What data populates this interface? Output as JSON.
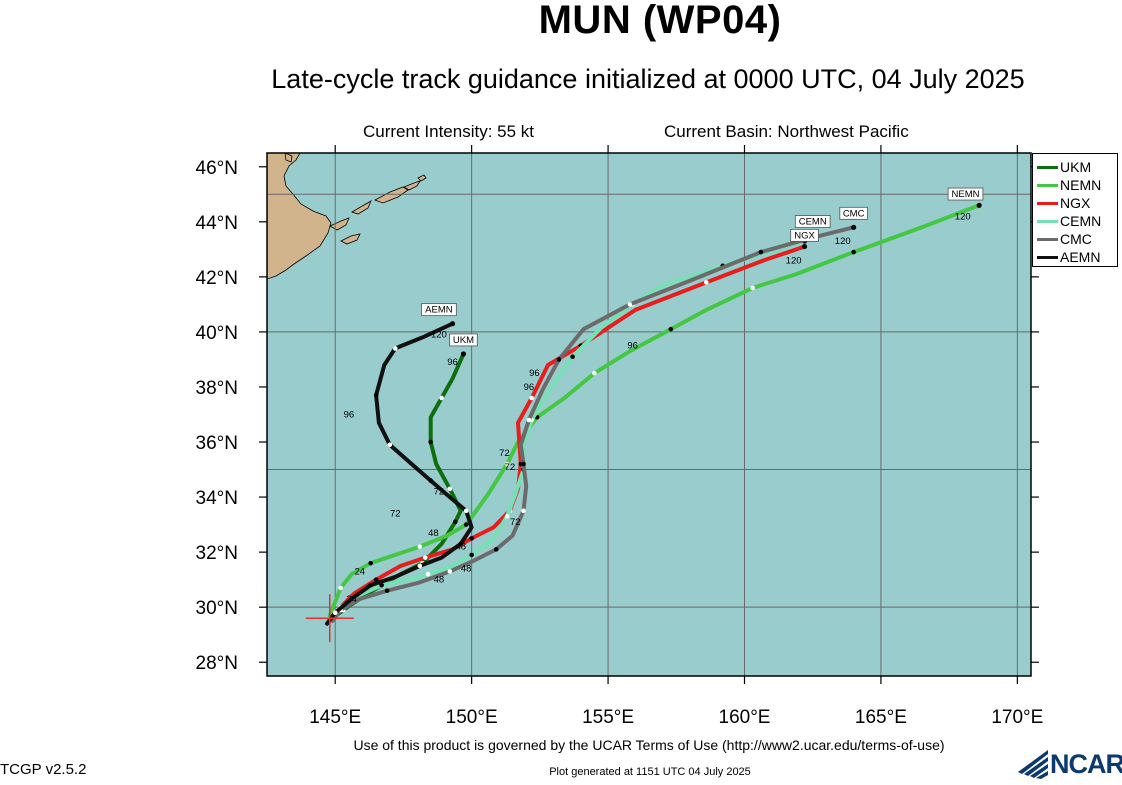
{
  "header": {
    "title": "MUN (WP04)",
    "subtitle": "Late-cycle track guidance initialized at 0000 UTC, 04 July 2025",
    "intensity": "Current Intensity: 55 kt",
    "basin": "Current Basin: Northwest Pacific"
  },
  "footer": {
    "terms": "Use of this product is governed by the UCAR Terms of Use (http://www2.ucar.edu/terms-of-use)",
    "version": "TCGP v2.5.2",
    "generated": "Plot generated at 1151 UTC   04 July 2025",
    "logo_text": "NCAR"
  },
  "map": {
    "lon_range": [
      142.5,
      170.5
    ],
    "lat_range": [
      27.5,
      46.5
    ],
    "lon_ticks": [
      145,
      150,
      155,
      160,
      165,
      170
    ],
    "lat_ticks": [
      28,
      30,
      32,
      34,
      36,
      38,
      40,
      42,
      44,
      46
    ],
    "lon_tick_labels": [
      "145°E",
      "150°E",
      "155°E",
      "160°E",
      "165°E",
      "170°E"
    ],
    "lat_tick_labels": [
      "28°N",
      "30°N",
      "32°N",
      "34°N",
      "36°N",
      "38°N",
      "40°N",
      "42°N",
      "44°N",
      "46°N"
    ],
    "gridlines": {
      "lon": [
        145,
        150,
        155,
        160,
        165,
        170
      ],
      "lat": [
        30,
        35,
        40,
        45
      ]
    },
    "ocean_color": "#99cccc",
    "land_color": "#d2b48c",
    "current_position": {
      "lon": 144.8,
      "lat": 29.6,
      "color": "#e83030"
    }
  },
  "legend": [
    {
      "model": "UKM",
      "color": "#0d6e0d"
    },
    {
      "model": "NEMN",
      "color": "#44c844"
    },
    {
      "model": "NGX",
      "color": "#e61e1e"
    },
    {
      "model": "CEMN",
      "color": "#77e0b5"
    },
    {
      "model": "CMC",
      "color": "#6b6b6b"
    },
    {
      "model": "AEMN",
      "color": "#111111"
    }
  ],
  "tracks": [
    {
      "model": "UKM",
      "color": "#0d6e0d",
      "points": [
        [
          144.9,
          29.6
        ],
        [
          145.3,
          29.9
        ],
        [
          145.9,
          30.3
        ],
        [
          146.7,
          30.8
        ],
        [
          147.4,
          31.2
        ],
        [
          148.2,
          31.6
        ],
        [
          148.9,
          32.3
        ],
        [
          149.4,
          33.1
        ],
        [
          149.6,
          33.5
        ],
        [
          149.2,
          34.3
        ],
        [
          148.7,
          35.2
        ],
        [
          148.5,
          36.0
        ],
        [
          148.5,
          36.9
        ],
        [
          148.9,
          37.6
        ],
        [
          149.3,
          38.3
        ],
        [
          149.7,
          39.2
        ]
      ],
      "labels": [
        {
          "text": "96",
          "lon": 149.3,
          "lat": 38.9
        },
        {
          "text": "UKM",
          "lon": 149.7,
          "lat": 39.6,
          "box": true
        }
      ]
    },
    {
      "model": "NEMN",
      "color": "#44c844",
      "points": [
        [
          144.8,
          29.7
        ],
        [
          145.2,
          30.7
        ],
        [
          145.6,
          31.2
        ],
        [
          146.3,
          31.6
        ],
        [
          147.2,
          31.9
        ],
        [
          148.1,
          32.2
        ],
        [
          149.1,
          32.6
        ],
        [
          149.8,
          33.0
        ],
        [
          150.6,
          34.1
        ],
        [
          151.3,
          35.2
        ],
        [
          151.7,
          36.0
        ],
        [
          152.4,
          36.9
        ],
        [
          153.4,
          37.6
        ],
        [
          154.5,
          38.5
        ],
        [
          155.8,
          39.3
        ],
        [
          157.3,
          40.1
        ],
        [
          158.6,
          40.8
        ],
        [
          160.3,
          41.6
        ],
        [
          161.9,
          42.1
        ],
        [
          164.0,
          42.9
        ],
        [
          166.5,
          43.8
        ],
        [
          168.6,
          44.6
        ]
      ],
      "labels": [
        {
          "text": "24",
          "lon": 145.9,
          "lat": 31.3
        },
        {
          "text": "48",
          "lon": 148.6,
          "lat": 32.7
        },
        {
          "text": "72",
          "lon": 151.2,
          "lat": 35.6
        },
        {
          "text": "96",
          "lon": 155.9,
          "lat": 39.5
        },
        {
          "text": "120",
          "lon": 168.0,
          "lat": 44.2
        },
        {
          "text": "NEMN",
          "lon": 168.1,
          "lat": 44.9,
          "box": true
        }
      ]
    },
    {
      "model": "NGX",
      "color": "#e61e1e",
      "points": [
        [
          144.8,
          29.5
        ],
        [
          145.1,
          29.9
        ],
        [
          145.7,
          30.5
        ],
        [
          146.5,
          31.0
        ],
        [
          147.4,
          31.5
        ],
        [
          148.3,
          31.8
        ],
        [
          149.3,
          32.1
        ],
        [
          150.0,
          32.5
        ],
        [
          150.8,
          32.9
        ],
        [
          151.4,
          33.5
        ],
        [
          151.7,
          34.3
        ],
        [
          151.8,
          35.2
        ],
        [
          151.7,
          36.7
        ],
        [
          152.2,
          37.6
        ],
        [
          152.8,
          38.8
        ],
        [
          154.0,
          39.5
        ],
        [
          156.0,
          40.8
        ],
        [
          158.6,
          41.8
        ],
        [
          160.7,
          42.6
        ],
        [
          162.2,
          43.1
        ]
      ],
      "labels": [
        {
          "text": "48",
          "lon": 149.6,
          "lat": 32.2
        },
        {
          "text": "72",
          "lon": 151.4,
          "lat": 35.1
        },
        {
          "text": "96",
          "lon": 152.3,
          "lat": 38.5
        },
        {
          "text": "120",
          "lon": 161.8,
          "lat": 42.6
        },
        {
          "text": "NGX",
          "lon": 162.2,
          "lat": 43.4,
          "box": true
        }
      ]
    },
    {
      "model": "CEMN",
      "color": "#77e0b5",
      "points": [
        [
          144.9,
          29.5
        ],
        [
          145.2,
          30.0
        ],
        [
          145.8,
          30.4
        ],
        [
          146.7,
          30.8
        ],
        [
          147.6,
          31.0
        ],
        [
          148.4,
          31.2
        ],
        [
          149.3,
          31.5
        ],
        [
          150.0,
          31.9
        ],
        [
          150.8,
          32.5
        ],
        [
          151.3,
          33.3
        ],
        [
          151.6,
          34.1
        ],
        [
          151.9,
          35.0
        ],
        [
          151.9,
          35.9
        ],
        [
          152.2,
          36.8
        ],
        [
          152.8,
          37.8
        ],
        [
          153.7,
          39.1
        ],
        [
          154.8,
          40.2
        ],
        [
          155.9,
          41.0
        ],
        [
          157.0,
          41.7
        ],
        [
          159.2,
          42.4
        ],
        [
          162.2,
          43.3
        ]
      ],
      "labels": [
        {
          "text": "CEMN",
          "lon": 162.5,
          "lat": 43.9,
          "box": true
        }
      ]
    },
    {
      "model": "CMC",
      "color": "#6b6b6b",
      "points": [
        [
          144.9,
          29.5
        ],
        [
          145.2,
          29.9
        ],
        [
          145.9,
          30.3
        ],
        [
          146.9,
          30.6
        ],
        [
          148.1,
          30.9
        ],
        [
          149.2,
          31.3
        ],
        [
          150.1,
          31.7
        ],
        [
          150.9,
          32.1
        ],
        [
          151.5,
          32.6
        ],
        [
          151.9,
          33.5
        ],
        [
          152.0,
          34.4
        ],
        [
          151.9,
          35.2
        ],
        [
          151.8,
          35.9
        ],
        [
          152.1,
          36.8
        ],
        [
          152.6,
          37.9
        ],
        [
          153.2,
          39.0
        ],
        [
          154.1,
          40.1
        ],
        [
          155.8,
          41.0
        ],
        [
          158.1,
          41.9
        ],
        [
          160.6,
          42.9
        ],
        [
          162.4,
          43.4
        ],
        [
          164.0,
          43.8
        ]
      ],
      "labels": [
        {
          "text": "48",
          "lon": 149.8,
          "lat": 31.4
        },
        {
          "text": "72",
          "lon": 151.6,
          "lat": 33.1
        },
        {
          "text": "96",
          "lon": 152.1,
          "lat": 38.0
        },
        {
          "text": "120",
          "lon": 163.6,
          "lat": 43.3
        },
        {
          "text": "CMC",
          "lon": 164.0,
          "lat": 44.2,
          "box": true
        }
      ]
    },
    {
      "model": "AEMN",
      "color": "#111111",
      "points": [
        [
          144.7,
          29.4
        ],
        [
          145.0,
          29.8
        ],
        [
          145.6,
          30.3
        ],
        [
          146.3,
          30.8
        ],
        [
          147.2,
          31.1
        ],
        [
          148.1,
          31.5
        ],
        [
          148.9,
          31.8
        ],
        [
          149.6,
          32.3
        ],
        [
          150.0,
          32.9
        ],
        [
          149.8,
          33.5
        ],
        [
          149.2,
          34.0
        ],
        [
          148.5,
          34.6
        ],
        [
          147.8,
          35.2
        ],
        [
          147.0,
          35.9
        ],
        [
          146.6,
          36.7
        ],
        [
          146.5,
          37.7
        ],
        [
          146.8,
          38.8
        ],
        [
          147.2,
          39.4
        ],
        [
          148.2,
          39.8
        ],
        [
          149.3,
          40.3
        ]
      ],
      "labels": [
        {
          "text": "24",
          "lon": 145.6,
          "lat": 30.3
        },
        {
          "text": "48",
          "lon": 148.8,
          "lat": 31.0
        },
        {
          "text": "72",
          "lon": 148.8,
          "lat": 34.2
        },
        {
          "text": "72",
          "lon": 147.2,
          "lat": 33.4
        },
        {
          "text": "96",
          "lon": 145.5,
          "lat": 37.0
        },
        {
          "text": "120",
          "lon": 148.8,
          "lat": 39.9
        },
        {
          "text": "AEMN",
          "lon": 148.8,
          "lat": 40.7,
          "box": true
        }
      ]
    }
  ]
}
